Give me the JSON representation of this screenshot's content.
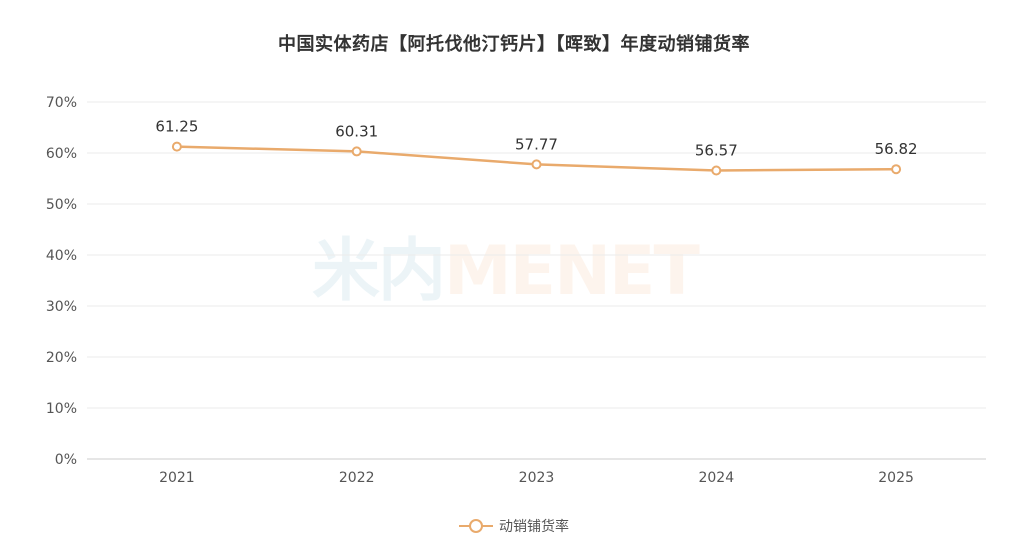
{
  "title": "中国实体药店【阿托伐他汀钙片】【晖致】年度动销铺货率",
  "watermark": {
    "left_text": "米内",
    "right_text": "MENET"
  },
  "colors": {
    "series": "#e9aa6c",
    "grid": "#ebebeb",
    "axis": "#cccccc",
    "text": "#555555"
  },
  "legend": {
    "label": "动销铺货率"
  },
  "chart_data": {
    "type": "line",
    "title": "中国实体药店【阿托伐他汀钙片】【晖致】年度动销铺货率",
    "categories": [
      "2021",
      "2022",
      "2023",
      "2024",
      "2025"
    ],
    "series": [
      {
        "name": "动销铺货率",
        "values": [
          61.25,
          60.31,
          57.77,
          56.57,
          56.82
        ],
        "labels": [
          "61.25",
          "60.31",
          "57.77",
          "56.57",
          "56.82"
        ]
      }
    ],
    "y_ticks": [
      "0%",
      "10%",
      "20%",
      "30%",
      "40%",
      "50%",
      "60%",
      "70%"
    ],
    "ylim": [
      0,
      70
    ],
    "grid": true,
    "legend_position": "bottom-center"
  }
}
